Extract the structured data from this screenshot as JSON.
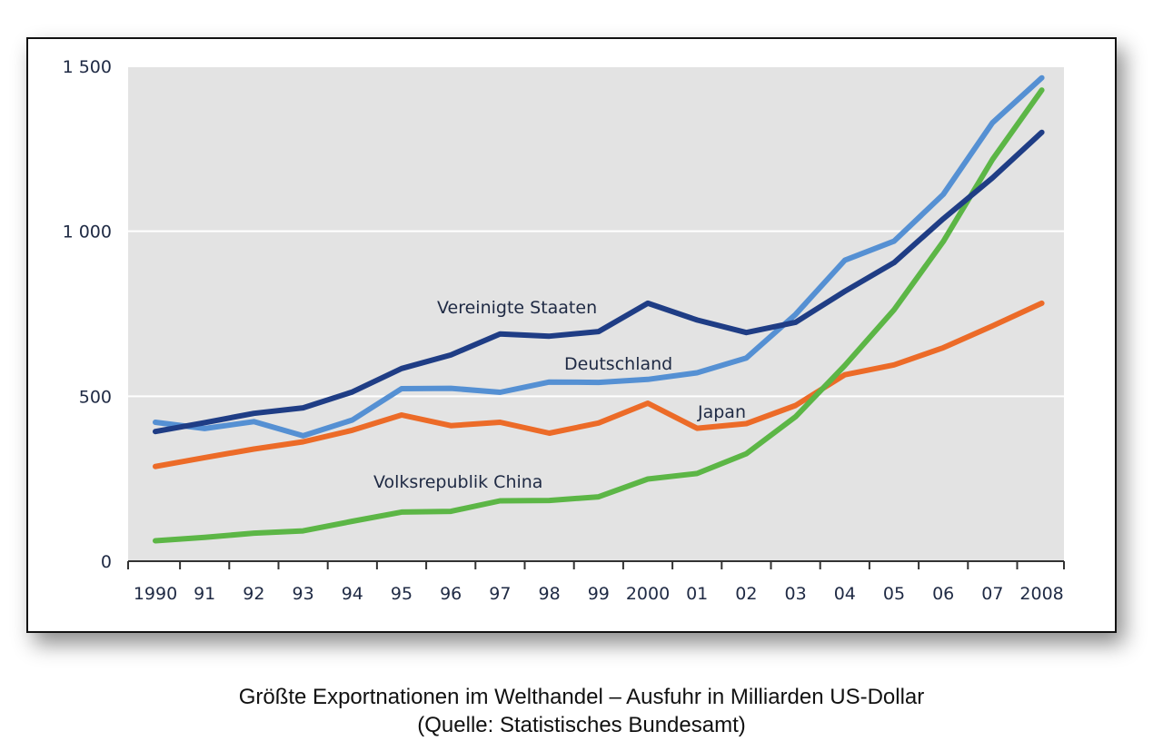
{
  "chart_data": {
    "type": "line",
    "title": "Größte Exportnationen im Welthandel – Ausfuhr in Milliarden US-Dollar",
    "source": "(Quelle: Statistisches Bundesamt)",
    "xlabel": "",
    "ylabel": "",
    "categories": [
      "1990",
      "91",
      "92",
      "93",
      "94",
      "95",
      "96",
      "97",
      "98",
      "99",
      "2000",
      "01",
      "02",
      "03",
      "04",
      "05",
      "06",
      "07",
      "2008"
    ],
    "ylim": [
      0,
      1500
    ],
    "yticks": [
      0,
      500,
      1000,
      1500
    ],
    "ytick_labels": [
      "0",
      "500",
      "1 000",
      "1 500"
    ],
    "grid": "horizontal",
    "background": "#e3e3e3",
    "series": [
      {
        "name": "Vereinigte Staaten",
        "color": "#1f3d85",
        "values": [
          393,
          420,
          448,
          465,
          513,
          584,
          625,
          689,
          682,
          696,
          782,
          731,
          693,
          724,
          818,
          905,
          1038,
          1162,
          1300
        ]
      },
      {
        "name": "Deutschland",
        "color": "#5590d3",
        "values": [
          421,
          402,
          423,
          380,
          428,
          523,
          524,
          512,
          543,
          542,
          551,
          571,
          616,
          748,
          912,
          970,
          1112,
          1329,
          1465
        ]
      },
      {
        "name": "Japan",
        "color": "#ec6b28",
        "values": [
          287,
          314,
          340,
          362,
          397,
          443,
          411,
          421,
          388,
          419,
          479,
          403,
          417,
          472,
          565,
          595,
          647,
          713,
          782
        ]
      },
      {
        "name": "Volksrepublik China",
        "color": "#5cb646",
        "values": [
          62,
          72,
          85,
          92,
          121,
          149,
          151,
          183,
          184,
          195,
          249,
          266,
          326,
          438,
          593,
          762,
          969,
          1218,
          1428
        ]
      }
    ]
  }
}
